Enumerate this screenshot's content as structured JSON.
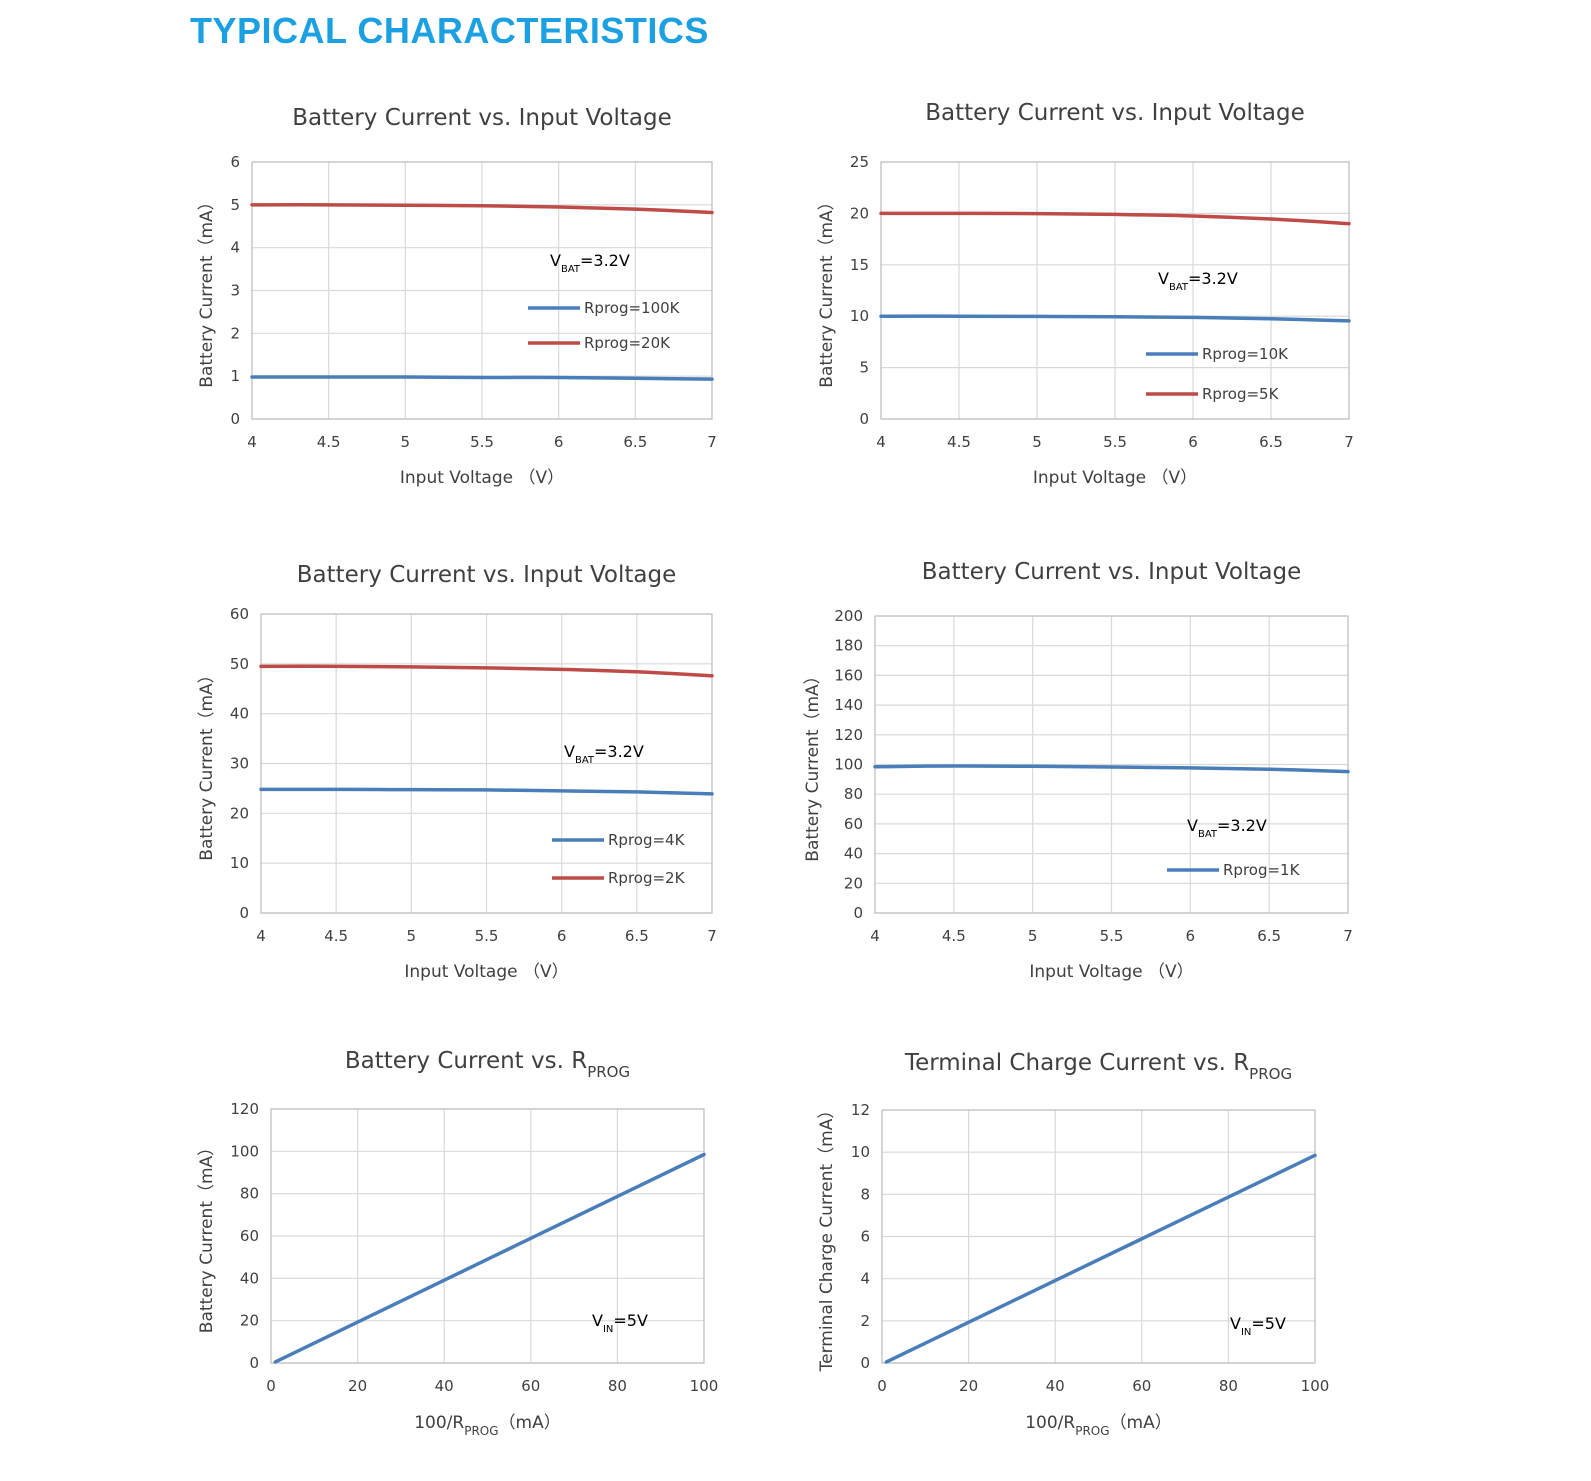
{
  "page": {
    "title": "TYPICAL CHARACTERISTICS"
  },
  "colors": {
    "blue": "#4a7ebb",
    "red": "#be4b48",
    "title": "#1ba1e2"
  },
  "chart_data": [
    {
      "id": "c1",
      "type": "line",
      "title": {
        "main": "Battery Current vs. Input Voltage",
        "sub": ""
      },
      "xlabel": {
        "main": "Input Voltage （V）",
        "sub": "",
        "post": ""
      },
      "ylabel": "Battery Current（mA）",
      "xlim": [
        4,
        7
      ],
      "ylim": [
        0,
        6
      ],
      "xticks": [
        4,
        4.5,
        5,
        5.5,
        6,
        6.5,
        7
      ],
      "yticks": [
        0,
        1,
        2,
        3,
        4,
        5,
        6
      ],
      "x": [
        4,
        4.5,
        5,
        5.5,
        6,
        6.5,
        7
      ],
      "series": [
        {
          "name": "Rprog=100K",
          "color": "#4a7ebb",
          "values": [
            0.98,
            0.98,
            0.98,
            0.97,
            0.97,
            0.95,
            0.93
          ]
        },
        {
          "name": "Rprog=20K",
          "color": "#be4b48",
          "values": [
            5.0,
            5.0,
            4.99,
            4.98,
            4.95,
            4.9,
            4.82
          ]
        }
      ],
      "annotation": {
        "main": "V",
        "sub": "BAT",
        "rest": "=3.2V"
      }
    },
    {
      "id": "c2",
      "type": "line",
      "title": {
        "main": "Battery Current vs. Input Voltage",
        "sub": ""
      },
      "xlabel": {
        "main": "Input Voltage （V）",
        "sub": "",
        "post": ""
      },
      "ylabel": "Battery Current（mA）",
      "xlim": [
        4,
        7
      ],
      "ylim": [
        0,
        25
      ],
      "xticks": [
        4,
        4.5,
        5,
        5.5,
        6,
        6.5,
        7
      ],
      "yticks": [
        0,
        5,
        10,
        15,
        20,
        25
      ],
      "x": [
        4,
        4.5,
        5,
        5.5,
        6,
        6.5,
        7
      ],
      "series": [
        {
          "name": "Rprog=10K",
          "color": "#4a7ebb",
          "values": [
            10.0,
            10.0,
            9.98,
            9.95,
            9.88,
            9.75,
            9.55
          ]
        },
        {
          "name": "Rprog=5K",
          "color": "#be4b48",
          "values": [
            20.0,
            20.0,
            19.98,
            19.9,
            19.75,
            19.45,
            19.0
          ]
        }
      ],
      "annotation": {
        "main": "V",
        "sub": "BAT",
        "rest": "=3.2V"
      }
    },
    {
      "id": "c3",
      "type": "line",
      "title": {
        "main": "Battery Current vs. Input Voltage",
        "sub": ""
      },
      "xlabel": {
        "main": "Input Voltage （V）",
        "sub": "",
        "post": ""
      },
      "ylabel": "Battery Current（mA）",
      "xlim": [
        4,
        7
      ],
      "ylim": [
        0,
        60
      ],
      "xticks": [
        4,
        4.5,
        5,
        5.5,
        6,
        6.5,
        7
      ],
      "yticks": [
        0,
        10,
        20,
        30,
        40,
        50,
        60
      ],
      "x": [
        4,
        4.5,
        5,
        5.5,
        6,
        6.5,
        7
      ],
      "series": [
        {
          "name": "Rprog=4K",
          "color": "#4a7ebb",
          "values": [
            24.8,
            24.8,
            24.75,
            24.7,
            24.5,
            24.3,
            23.9
          ]
        },
        {
          "name": "Rprog=2K",
          "color": "#be4b48",
          "values": [
            49.5,
            49.5,
            49.4,
            49.2,
            48.9,
            48.4,
            47.6
          ]
        }
      ],
      "annotation": {
        "main": "V",
        "sub": "BAT",
        "rest": "=3.2V"
      }
    },
    {
      "id": "c4",
      "type": "line",
      "title": {
        "main": "Battery Current vs. Input Voltage",
        "sub": ""
      },
      "xlabel": {
        "main": "Input Voltage （V）",
        "sub": "",
        "post": ""
      },
      "ylabel": "Battery Current（mA）",
      "xlim": [
        4,
        7
      ],
      "ylim": [
        0,
        200
      ],
      "xticks": [
        4,
        4.5,
        5,
        5.5,
        6,
        6.5,
        7
      ],
      "yticks": [
        0,
        20,
        40,
        60,
        80,
        100,
        120,
        140,
        160,
        180,
        200
      ],
      "x": [
        4,
        4.5,
        5,
        5.5,
        6,
        6.5,
        7
      ],
      "series": [
        {
          "name": "Rprog=1K",
          "color": "#4a7ebb",
          "values": [
            98.5,
            99.0,
            98.8,
            98.3,
            97.7,
            96.8,
            95.2
          ]
        }
      ],
      "annotation": {
        "main": "V",
        "sub": "BAT",
        "rest": "=3.2V"
      }
    },
    {
      "id": "c5",
      "type": "line",
      "title": {
        "main": "Battery Current vs. R",
        "sub": "PROG"
      },
      "xlabel": {
        "main": "100/R",
        "sub": "PROG",
        "post": "（mA）"
      },
      "ylabel": "Battery Current（mA）",
      "xlim": [
        0,
        100
      ],
      "ylim": [
        0,
        120
      ],
      "xticks": [
        0,
        20,
        40,
        60,
        80,
        100
      ],
      "yticks": [
        0,
        20,
        40,
        60,
        80,
        100,
        120
      ],
      "x": [
        1,
        100
      ],
      "series": [
        {
          "name": "",
          "color": "#4a7ebb",
          "values": [
            0.5,
            98.5
          ]
        }
      ],
      "annotation": {
        "main": "V",
        "sub": "IN",
        "rest": "=5V"
      }
    },
    {
      "id": "c6",
      "type": "line",
      "title": {
        "main": "Terminal Charge Current vs. R",
        "sub": "PROG"
      },
      "xlabel": {
        "main": "100/R",
        "sub": "PROG",
        "post": "（mA）"
      },
      "ylabel": "Terminal Charge Current（mA）",
      "xlim": [
        0,
        100
      ],
      "ylim": [
        0,
        12
      ],
      "xticks": [
        0,
        20,
        40,
        60,
        80,
        100
      ],
      "yticks": [
        0,
        2,
        4,
        6,
        8,
        10,
        12
      ],
      "x": [
        1,
        100
      ],
      "series": [
        {
          "name": "",
          "color": "#4a7ebb",
          "values": [
            0.05,
            9.85
          ]
        }
      ],
      "annotation": {
        "main": "V",
        "sub": "IN",
        "rest": "=5V"
      }
    }
  ]
}
